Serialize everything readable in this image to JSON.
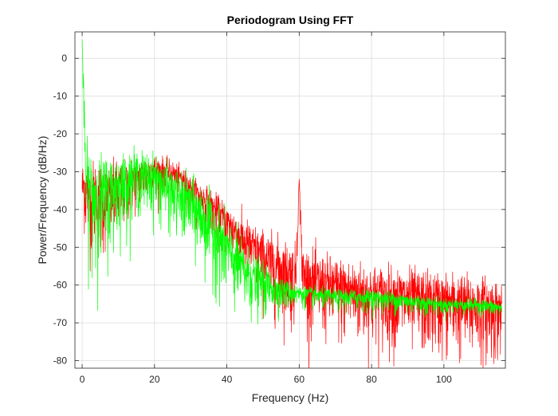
{
  "chart_data": {
    "type": "line",
    "title": "Periodogram Using FFT",
    "xlabel": "Frequency (Hz)",
    "ylabel": "Power/Frequency (dB/Hz)",
    "xlim": [
      -2,
      117
    ],
    "ylim": [
      -82,
      7
    ],
    "xticks": [
      0,
      20,
      40,
      60,
      80,
      100
    ],
    "yticks": [
      0,
      -10,
      -20,
      -30,
      -40,
      -50,
      -60,
      -70,
      -80
    ],
    "grid": true,
    "legend": "none",
    "series": [
      {
        "color": "#ff0000",
        "x": [
          0,
          2,
          5,
          10,
          15,
          20,
          25,
          28,
          30,
          35,
          40,
          45,
          50,
          55,
          59,
          60,
          61,
          65,
          70,
          80,
          90,
          100,
          110,
          116
        ],
        "y": [
          -33,
          -35,
          -36,
          -34,
          -31,
          -29,
          -30,
          -32,
          -34,
          -38,
          -43,
          -48,
          -52,
          -55,
          -57,
          -32,
          -57,
          -59,
          -60,
          -62,
          -63,
          -64,
          -65,
          -66
        ],
        "spread": [
          6,
          9,
          9,
          7,
          5,
          4,
          3,
          3,
          3,
          4,
          5,
          6,
          7,
          8,
          8,
          0,
          8,
          8,
          8,
          8,
          8,
          8,
          8,
          8
        ]
      },
      {
        "color": "#00ff00",
        "x": [
          0,
          1,
          3,
          5,
          10,
          15,
          20,
          25,
          30,
          35,
          40,
          45,
          50,
          55,
          60,
          70,
          80,
          90,
          100,
          110,
          116
        ],
        "y": [
          5,
          -32,
          -35,
          -36,
          -33,
          -30,
          -31,
          -35,
          -38,
          -43,
          -50,
          -56,
          -59,
          -61,
          -62,
          -63,
          -63,
          -64,
          -65,
          -65,
          -66
        ],
        "spread": [
          0,
          10,
          11,
          11,
          8,
          6,
          6,
          6,
          7,
          8,
          8,
          7,
          5,
          3,
          2,
          2,
          2,
          2,
          1.5,
          1.5,
          1.5
        ]
      }
    ]
  }
}
